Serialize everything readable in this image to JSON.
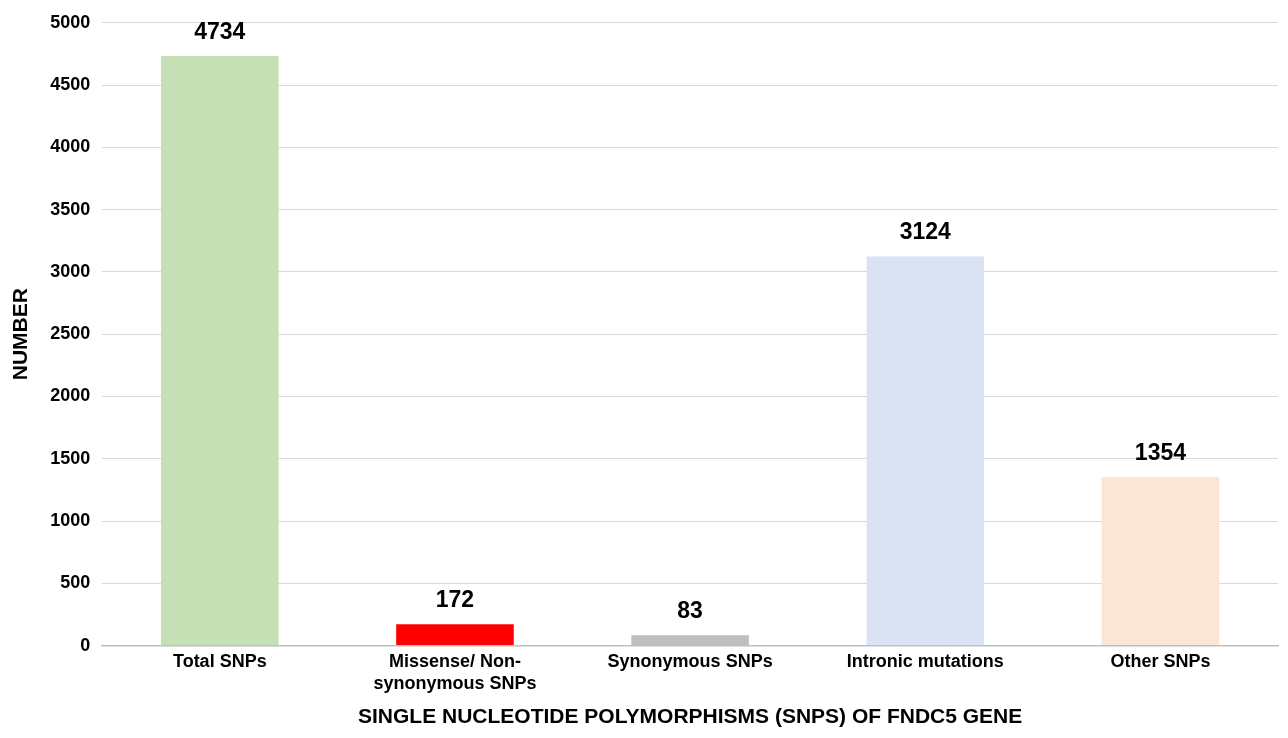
{
  "chart_data": {
    "type": "bar",
    "xlabel": "SINGLE NUCLEOTIDE POLYMORPHISMS (SNPS) OF FNDC5 GENE",
    "ylabel": "NUMBER",
    "categories": [
      "Total SNPs",
      "Missense/ Non-synonymous SNPs",
      "Synonymous SNPs",
      "Intronic mutations",
      "Other SNPs"
    ],
    "values": [
      4734,
      172,
      83,
      3124,
      1354
    ],
    "colors": [
      "#c5e0b4",
      "#ff0000",
      "#bfbfbf",
      "#dae3f3",
      "#fbe5d6"
    ],
    "ylim": [
      0,
      5000
    ],
    "yticks": [
      0,
      500,
      1000,
      1500,
      2000,
      2500,
      3000,
      3500,
      4000,
      4500,
      5000
    ],
    "grid": "y",
    "legend": false,
    "data_labels": true
  }
}
